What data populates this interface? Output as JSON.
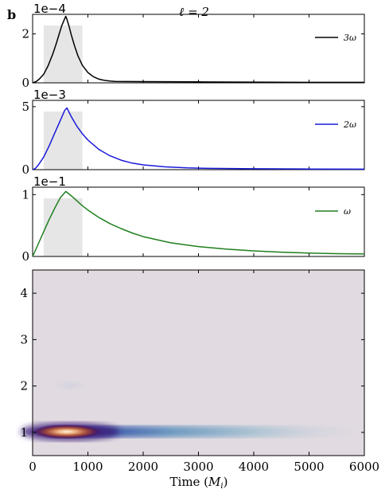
{
  "panel_label": "b",
  "title": "ℓ = 2",
  "colors": {
    "shade": "#e6e6e6",
    "black": "#000000",
    "blue": "#1a1adb",
    "green": "#1f7f1f",
    "spectro_bg": "#e1dae1"
  },
  "chart_data": [
    {
      "type": "line",
      "multiplier": "1e−4",
      "legend": "3ω",
      "color": "#000000",
      "xlim": [
        0,
        6000
      ],
      "ylim": [
        0,
        2.8
      ],
      "yticks": [
        "0",
        "2"
      ],
      "shaded_x": [
        200,
        900
      ],
      "x": [
        0,
        60,
        120,
        200,
        280,
        360,
        420,
        480,
        530,
        580,
        600,
        620,
        660,
        700,
        760,
        820,
        900,
        1000,
        1100,
        1200,
        1300,
        1400,
        1500,
        2000,
        3000,
        4000,
        5000,
        6000
      ],
      "y": [
        0,
        0.05,
        0.15,
        0.35,
        0.7,
        1.15,
        1.55,
        2.0,
        2.35,
        2.62,
        2.72,
        2.6,
        2.3,
        1.95,
        1.5,
        1.1,
        0.72,
        0.42,
        0.25,
        0.15,
        0.1,
        0.07,
        0.06,
        0.05,
        0.04,
        0.03,
        0.02,
        0.02
      ]
    },
    {
      "type": "line",
      "multiplier": "1e−3",
      "legend": "2ω",
      "color": "#1a1adb",
      "xlim": [
        0,
        6000
      ],
      "ylim": [
        0,
        5.5
      ],
      "yticks": [
        "0",
        "5"
      ],
      "shaded_x": [
        200,
        900
      ],
      "x": [
        0,
        50,
        100,
        200,
        300,
        400,
        500,
        580,
        620,
        700,
        800,
        900,
        1000,
        1200,
        1400,
        1600,
        1800,
        2000,
        2400,
        2800,
        3200,
        4000,
        5000,
        6000
      ],
      "y": [
        0,
        0.1,
        0.35,
        1.0,
        1.9,
        2.9,
        3.9,
        4.7,
        4.9,
        4.2,
        3.45,
        2.85,
        2.35,
        1.6,
        1.1,
        0.75,
        0.52,
        0.38,
        0.22,
        0.14,
        0.1,
        0.07,
        0.05,
        0.04
      ]
    },
    {
      "type": "line",
      "multiplier": "1e−1",
      "legend": "ω",
      "color": "#1f7f1f",
      "xlim": [
        0,
        6000
      ],
      "ylim": [
        0,
        1.12
      ],
      "yticks": [
        "0",
        "1"
      ],
      "shaded_x": [
        200,
        900
      ],
      "x": [
        0,
        100,
        200,
        300,
        400,
        500,
        600,
        700,
        800,
        900,
        1000,
        1200,
        1400,
        1600,
        1800,
        2000,
        2500,
        3000,
        3500,
        4000,
        4500,
        5000,
        5500,
        6000
      ],
      "y": [
        0,
        0.2,
        0.4,
        0.6,
        0.78,
        0.95,
        1.05,
        0.98,
        0.9,
        0.82,
        0.75,
        0.63,
        0.53,
        0.45,
        0.38,
        0.32,
        0.22,
        0.16,
        0.12,
        0.09,
        0.07,
        0.055,
        0.045,
        0.04
      ]
    },
    {
      "type": "heatmap",
      "xlabel": "Time (M_i)",
      "xticks": [
        "0",
        "1000",
        "2000",
        "3000",
        "4000",
        "5000",
        "6000"
      ],
      "yticks": [
        "1",
        "2",
        "3",
        "4"
      ],
      "xlim": [
        0,
        6000
      ],
      "ylim": [
        0.5,
        4.5
      ],
      "colormap": "twilight",
      "peak": {
        "x": 600,
        "y": 1
      }
    }
  ]
}
